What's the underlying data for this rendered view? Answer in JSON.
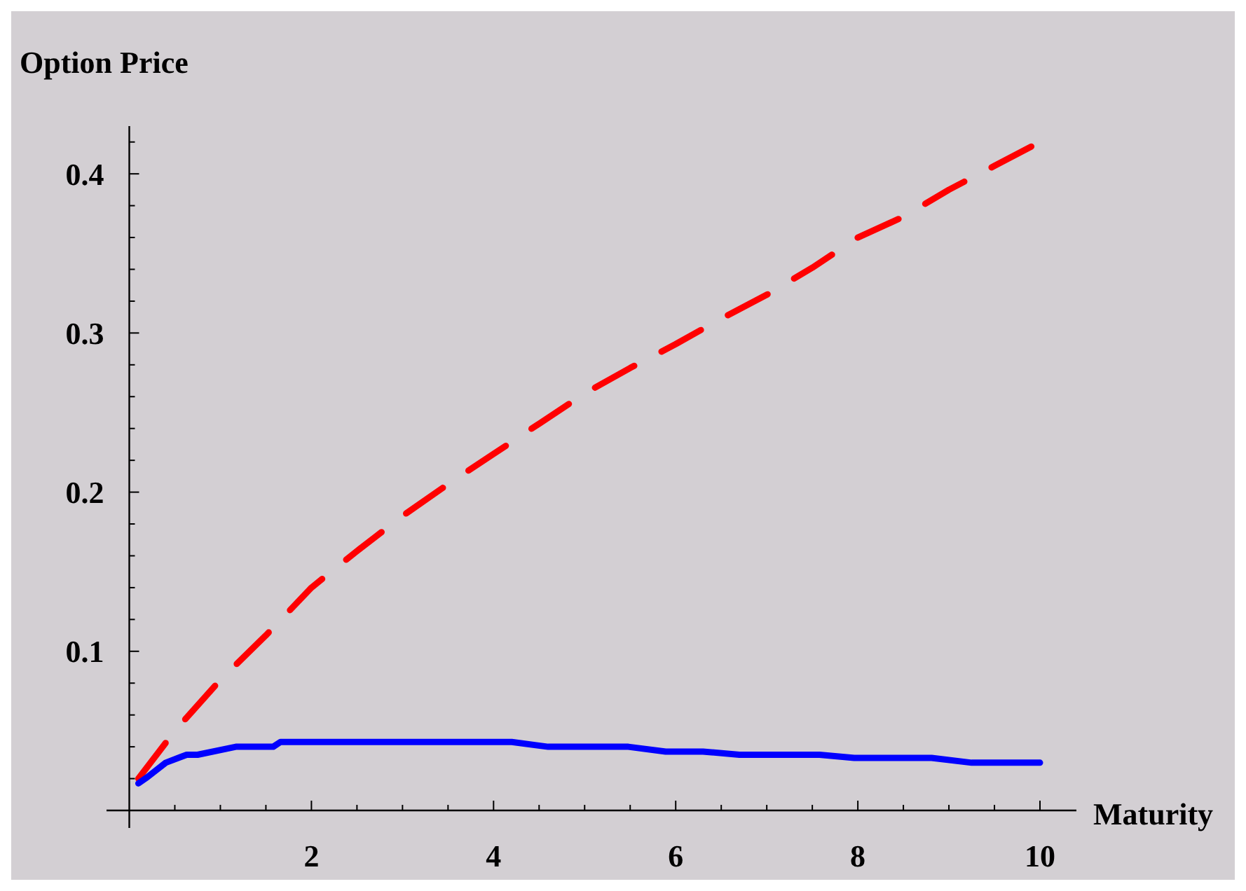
{
  "chart_data": {
    "type": "line",
    "ylabel": "Option Price",
    "xlabel": "Maturity",
    "xlim": [
      -0.25,
      10.4
    ],
    "ylim": [
      -0.011,
      0.43
    ],
    "xticks": [
      {
        "value": 0.5,
        "label": null
      },
      {
        "value": 1,
        "label": null
      },
      {
        "value": 1.5,
        "label": null
      },
      2,
      {
        "value": 2.5,
        "label": null
      },
      {
        "value": 3,
        "label": null
      },
      {
        "value": 3.5,
        "label": null
      },
      4,
      {
        "value": 4.5,
        "label": null
      },
      {
        "value": 5,
        "label": null
      },
      {
        "value": 5.5,
        "label": null
      },
      6,
      {
        "value": 6.5,
        "label": null
      },
      {
        "value": 7,
        "label": null
      },
      {
        "value": 7.5,
        "label": null
      },
      8,
      {
        "value": 8.5,
        "label": null
      },
      {
        "value": 9,
        "label": null
      },
      {
        "value": 9.5,
        "label": null
      },
      10
    ],
    "yticks": [
      {
        "value": 0.02,
        "label": null
      },
      {
        "value": 0.04,
        "label": null
      },
      {
        "value": 0.06,
        "label": null
      },
      {
        "value": 0.08,
        "label": null
      },
      0.1,
      {
        "value": 0.12,
        "label": null
      },
      {
        "value": 0.14,
        "label": null
      },
      {
        "value": 0.16,
        "label": null
      },
      {
        "value": 0.18,
        "label": null
      },
      0.2,
      {
        "value": 0.22,
        "label": null
      },
      {
        "value": 0.24,
        "label": null
      },
      {
        "value": 0.26,
        "label": null
      },
      {
        "value": 0.28,
        "label": null
      },
      0.3,
      {
        "value": 0.32,
        "label": null
      },
      {
        "value": 0.34,
        "label": null
      },
      {
        "value": 0.36,
        "label": null
      },
      {
        "value": 0.38,
        "label": null
      },
      0.4,
      {
        "value": 0.42,
        "label": null
      }
    ],
    "grid": false,
    "marker": "none",
    "series": [
      {
        "color": "#ff0000",
        "line_style": "dashed",
        "x": [
          0.1,
          0.5,
          1,
          1.5,
          2,
          2.5,
          3,
          3.5,
          4,
          4.5,
          5,
          5.5,
          6,
          6.5,
          7,
          7.5,
          8,
          8.5,
          9,
          9.5,
          10
        ],
        "values": [
          0.02,
          0.05,
          0.082,
          0.11,
          0.14,
          0.163,
          0.185,
          0.205,
          0.224,
          0.243,
          0.262,
          0.278,
          0.293,
          0.309,
          0.324,
          0.341,
          0.36,
          0.373,
          0.39,
          0.405,
          0.42
        ]
      },
      {
        "color": "#0000ff",
        "line_style": "solid",
        "x": [
          0.1,
          0.2,
          0.4,
          0.63,
          0.75,
          1.17,
          1.58,
          1.66,
          4.2,
          4.6,
          5.48,
          5.89,
          6.3,
          6.7,
          7.58,
          7.96,
          8.81,
          9.25,
          10
        ],
        "values": [
          0.017,
          0.021,
          0.03,
          0.035,
          0.035,
          0.04,
          0.04,
          0.043,
          0.043,
          0.04,
          0.04,
          0.037,
          0.037,
          0.035,
          0.035,
          0.033,
          0.033,
          0.03,
          0.03
        ]
      }
    ]
  }
}
